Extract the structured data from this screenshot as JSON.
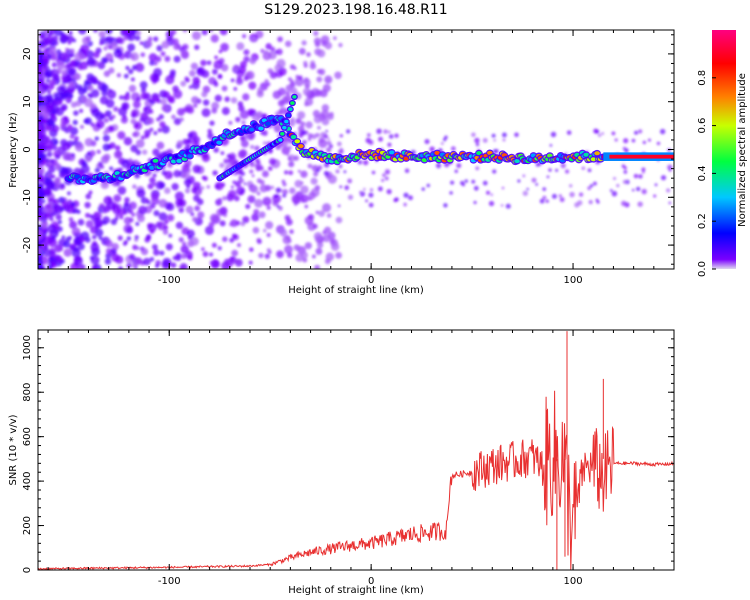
{
  "title": "S129.2023.198.16.48.R11",
  "chart_data": [
    {
      "type": "heatmap",
      "xlabel": "Height of straight line (km)",
      "ylabel": "Frequency (Hz)",
      "xlim": [
        -165,
        150
      ],
      "ylim": [
        -25,
        25
      ],
      "xticks": [
        -100,
        0,
        100
      ],
      "yticks": [
        -20,
        -10,
        0,
        10,
        20
      ],
      "colorbar": {
        "label": "Normalized spectral amplitude",
        "range": [
          0,
          1
        ],
        "ticks": [
          "0.0",
          "0.2",
          "0.4",
          "0.6",
          "0.8"
        ],
        "colormap": [
          "#e0d8f0",
          "#7a00ff",
          "#0000ff",
          "#00c8ff",
          "#00ff40",
          "#c8ff00",
          "#ff8000",
          "#ff0000",
          "#ff0080"
        ]
      },
      "ridge": [
        {
          "x": -150,
          "y": -6
        },
        {
          "x": -130,
          "y": -6
        },
        {
          "x": -110,
          "y": -3.5
        },
        {
          "x": -90,
          "y": -1
        },
        {
          "x": -80,
          "y": 1
        },
        {
          "x": -70,
          "y": 3.5
        },
        {
          "x": -55,
          "y": 5
        },
        {
          "x": -45,
          "y": 7
        },
        {
          "x": -35,
          "y": 0
        },
        {
          "x": -20,
          "y": -2
        },
        {
          "x": 0,
          "y": -1
        },
        {
          "x": 20,
          "y": -1.5
        },
        {
          "x": 40,
          "y": -1.5
        },
        {
          "x": 60,
          "y": -1.5
        },
        {
          "x": 80,
          "y": -2
        },
        {
          "x": 95,
          "y": -1.5
        },
        {
          "x": 115,
          "y": -1.5
        },
        {
          "x": 150,
          "y": -1.5
        }
      ],
      "secondary_ridge": [
        {
          "x": -75,
          "y": -6
        },
        {
          "x": -60,
          "y": -2
        },
        {
          "x": -45,
          "y": 2
        },
        {
          "x": -38,
          "y": 11
        }
      ]
    },
    {
      "type": "line",
      "xlabel": "Height of straight line (km)",
      "ylabel": "SNR (10 * v/v)",
      "xlim": [
        -165,
        150
      ],
      "ylim": [
        0,
        1080
      ],
      "xticks": [
        -100,
        0,
        100
      ],
      "yticks": [
        0,
        200,
        400,
        600,
        800,
        1000
      ],
      "series": [
        {
          "color": "#e83030",
          "x": [
            -165,
            -140,
            -120,
            -100,
            -80,
            -60,
            -50,
            -40,
            -30,
            -20,
            -10,
            0,
            10,
            20,
            30,
            38,
            40,
            50,
            60,
            70,
            80,
            85,
            90,
            95,
            100,
            105,
            110,
            115,
            120,
            130,
            140,
            150
          ],
          "y": [
            5,
            8,
            10,
            12,
            15,
            18,
            25,
            55,
            80,
            95,
            110,
            120,
            140,
            160,
            170,
            180,
            425,
            440,
            470,
            490,
            510,
            460,
            520,
            500,
            180,
            460,
            470,
            420,
            480,
            480,
            475,
            478
          ]
        }
      ]
    }
  ]
}
